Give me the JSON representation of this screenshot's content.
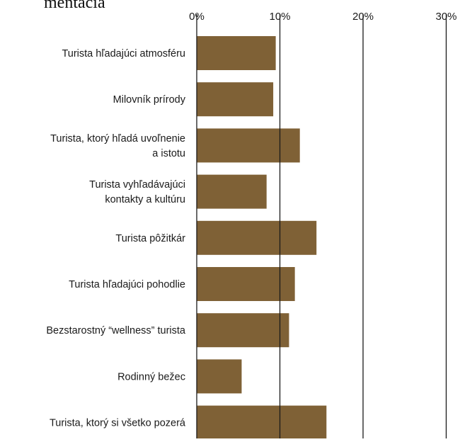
{
  "page": {
    "heading_fragment": "mentácia"
  },
  "chart_data": {
    "type": "bar",
    "orientation": "horizontal",
    "title": "",
    "xlabel": "",
    "ylabel": "",
    "x_ticks": [
      "0%",
      "10%",
      "20%",
      "30%"
    ],
    "x_tick_values": [
      0,
      10,
      20,
      30
    ],
    "xlim": [
      0,
      30
    ],
    "grid": true,
    "legend": "none",
    "bar_color": "#7f6136",
    "grid_color": "#1a1a1a",
    "categories": [
      [
        "Turista hľadajúci atmosféru"
      ],
      [
        "Milovník prírody"
      ],
      [
        "Turista, ktorý hľadá uvoľnenie",
        "a istotu"
      ],
      [
        "Turista vyhľadávajúci",
        "kontakty a kultúru"
      ],
      [
        "Turista pôžitkár"
      ],
      [
        "Turista hľadajúci pohodlie"
      ],
      [
        "Bezstarostný “wellness” turista"
      ],
      [
        "Rodinný bežec"
      ],
      [
        "Turista, ktorý si všetko pozerá"
      ]
    ],
    "values": [
      9.5,
      9.2,
      12.4,
      8.4,
      14.4,
      11.8,
      11.1,
      5.4,
      15.6
    ]
  }
}
